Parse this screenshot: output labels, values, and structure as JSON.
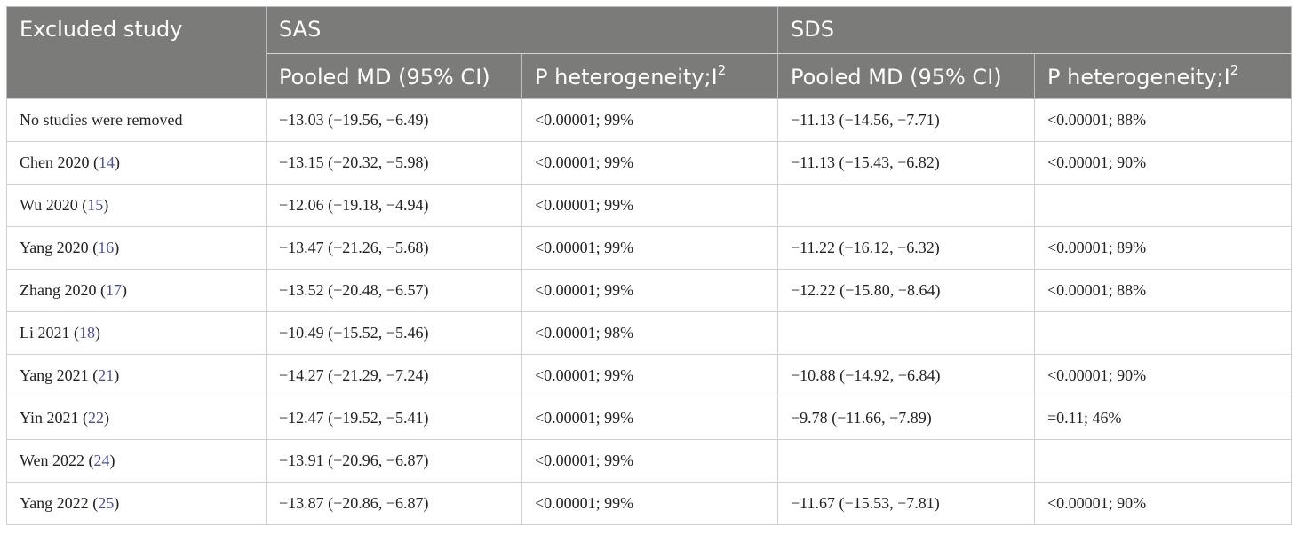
{
  "headers": {
    "excluded_study": "Excluded study",
    "sas": "SAS",
    "sds": "SDS",
    "pooled_md": "Pooled MD (95% CI)",
    "p_het_prefix": "P heterogeneity;I",
    "p_het_sup": "2"
  },
  "rows": [
    {
      "study": "No studies were removed",
      "ref": "",
      "sas_md": "−13.03 (−19.56, −6.49)",
      "sas_p": "<0.00001; 99%",
      "sds_md": "−11.13 (−14.56, −7.71)",
      "sds_p": "<0.00001; 88%"
    },
    {
      "study": "Chen 2020",
      "ref": "14",
      "sas_md": "−13.15 (−20.32, −5.98)",
      "sas_p": "<0.00001; 99%",
      "sds_md": "−11.13 (−15.43, −6.82)",
      "sds_p": "<0.00001; 90%"
    },
    {
      "study": "Wu 2020",
      "ref": "15",
      "sas_md": "−12.06 (−19.18, −4.94)",
      "sas_p": "<0.00001; 99%",
      "sds_md": "",
      "sds_p": ""
    },
    {
      "study": "Yang 2020",
      "ref": "16",
      "sas_md": "−13.47 (−21.26, −5.68)",
      "sas_p": "<0.00001; 99%",
      "sds_md": "−11.22 (−16.12, −6.32)",
      "sds_p": "<0.00001; 89%"
    },
    {
      "study": "Zhang 2020",
      "ref": "17",
      "sas_md": "−13.52 (−20.48, −6.57)",
      "sas_p": "<0.00001; 99%",
      "sds_md": "−12.22 (−15.80, −8.64)",
      "sds_p": "<0.00001; 88%"
    },
    {
      "study": "Li 2021",
      "ref": "18",
      "sas_md": "−10.49 (−15.52, −5.46)",
      "sas_p": "<0.00001; 98%",
      "sds_md": "",
      "sds_p": ""
    },
    {
      "study": "Yang 2021",
      "ref": "21",
      "sas_md": "−14.27 (−21.29, −7.24)",
      "sas_p": "<0.00001; 99%",
      "sds_md": "−10.88 (−14.92, −6.84)",
      "sds_p": "<0.00001; 90%"
    },
    {
      "study": "Yin 2021",
      "ref": "22",
      "sas_md": "−12.47 (−19.52, −5.41)",
      "sas_p": "<0.00001; 99%",
      "sds_md": "−9.78 (−11.66, −7.89)",
      "sds_p": "=0.11; 46%"
    },
    {
      "study": "Wen 2022",
      "ref": "24",
      "sas_md": "−13.91 (−20.96, −6.87)",
      "sas_p": "<0.00001; 99%",
      "sds_md": "",
      "sds_p": ""
    },
    {
      "study": "Yang 2022",
      "ref": "25",
      "sas_md": "−13.87 (−20.86, −6.87)",
      "sas_p": "<0.00001; 99%",
      "sds_md": "−11.67 (−15.53, −7.81)",
      "sds_p": "<0.00001; 90%"
    }
  ],
  "colors": {
    "header_bg": "#7b7b7a",
    "header_text": "#ffffff",
    "reference_link": "#4a4fa0",
    "grid": "#cfcfcf"
  }
}
